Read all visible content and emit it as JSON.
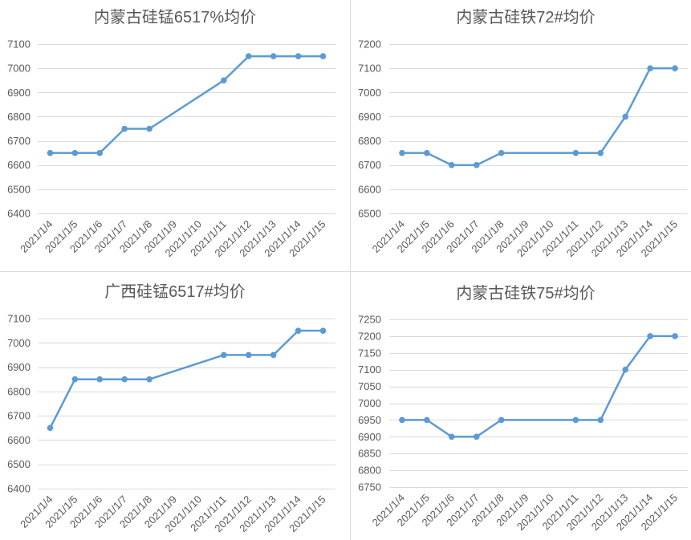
{
  "chart_data": [
    {
      "type": "line",
      "title": "内蒙古硅锰6517%均价",
      "categories": [
        "2021/1/4",
        "2021/1/5",
        "2021/1/6",
        "2021/1/7",
        "2021/1/8",
        "2021/1/9",
        "2021/1/10",
        "2021/1/11",
        "2021/1/12",
        "2021/1/13",
        "2021/1/14",
        "2021/1/15"
      ],
      "series": [
        {
          "values": [
            6650,
            6650,
            6650,
            6750,
            6750,
            null,
            null,
            6950,
            7050,
            7050,
            7050,
            7050
          ]
        }
      ],
      "ylim": [
        6400,
        7100
      ],
      "yticks": [
        6400,
        6500,
        6600,
        6700,
        6800,
        6900,
        7000,
        7100
      ],
      "grid": true,
      "legend": "none",
      "markers": true
    },
    {
      "type": "line",
      "title": "内蒙古硅铁72#均价",
      "categories": [
        "2021/1/4",
        "2021/1/5",
        "2021/1/6",
        "2021/1/7",
        "2021/1/8",
        "2021/1/9",
        "2021/1/10",
        "2021/1/11",
        "2021/1/12",
        "2021/1/13",
        "2021/1/14",
        "2021/1/15"
      ],
      "series": [
        {
          "values": [
            6750,
            6750,
            6700,
            6700,
            6750,
            null,
            null,
            6750,
            6750,
            6900,
            7100,
            7100
          ]
        }
      ],
      "ylim": [
        6500,
        7200
      ],
      "yticks": [
        6500,
        6600,
        6700,
        6800,
        6900,
        7000,
        7100,
        7200
      ],
      "grid": true,
      "legend": "none",
      "markers": true
    },
    {
      "type": "line",
      "title": "广西硅锰6517#均价",
      "categories": [
        "2021/1/4",
        "2021/1/5",
        "2021/1/6",
        "2021/1/7",
        "2021/1/8",
        "2021/1/9",
        "2021/1/10",
        "2021/1/11",
        "2021/1/12",
        "2021/1/13",
        "2021/1/14",
        "2021/1/15"
      ],
      "series": [
        {
          "values": [
            6650,
            6850,
            6850,
            6850,
            6850,
            null,
            null,
            6950,
            6950,
            6950,
            7050,
            7050
          ]
        }
      ],
      "ylim": [
        6400,
        7100
      ],
      "yticks": [
        6400,
        6500,
        6600,
        6700,
        6800,
        6900,
        7000,
        7100
      ],
      "grid": true,
      "legend": "none",
      "markers": true
    },
    {
      "type": "line",
      "title": "内蒙古硅铁75#均价",
      "categories": [
        "2021/1/4",
        "2021/1/5",
        "2021/1/6",
        "2021/1/7",
        "2021/1/8",
        "2021/1/9",
        "2021/1/10",
        "2021/1/11",
        "2021/1/12",
        "2021/1/13",
        "2021/1/14",
        "2021/1/15"
      ],
      "series": [
        {
          "values": [
            6950,
            6950,
            6900,
            6900,
            6950,
            null,
            null,
            6950,
            6950,
            7100,
            7200,
            7200
          ]
        }
      ],
      "ylim": [
        6750,
        7250
      ],
      "yticks": [
        6750,
        6800,
        6850,
        6900,
        6950,
        7000,
        7050,
        7100,
        7150,
        7200,
        7250
      ],
      "grid": true,
      "legend": "none",
      "markers": true
    }
  ],
  "colors": {
    "series": "#5b9bd5",
    "grid": "#d9d9d9",
    "text": "#595959",
    "divider": "#d9d9d9"
  }
}
